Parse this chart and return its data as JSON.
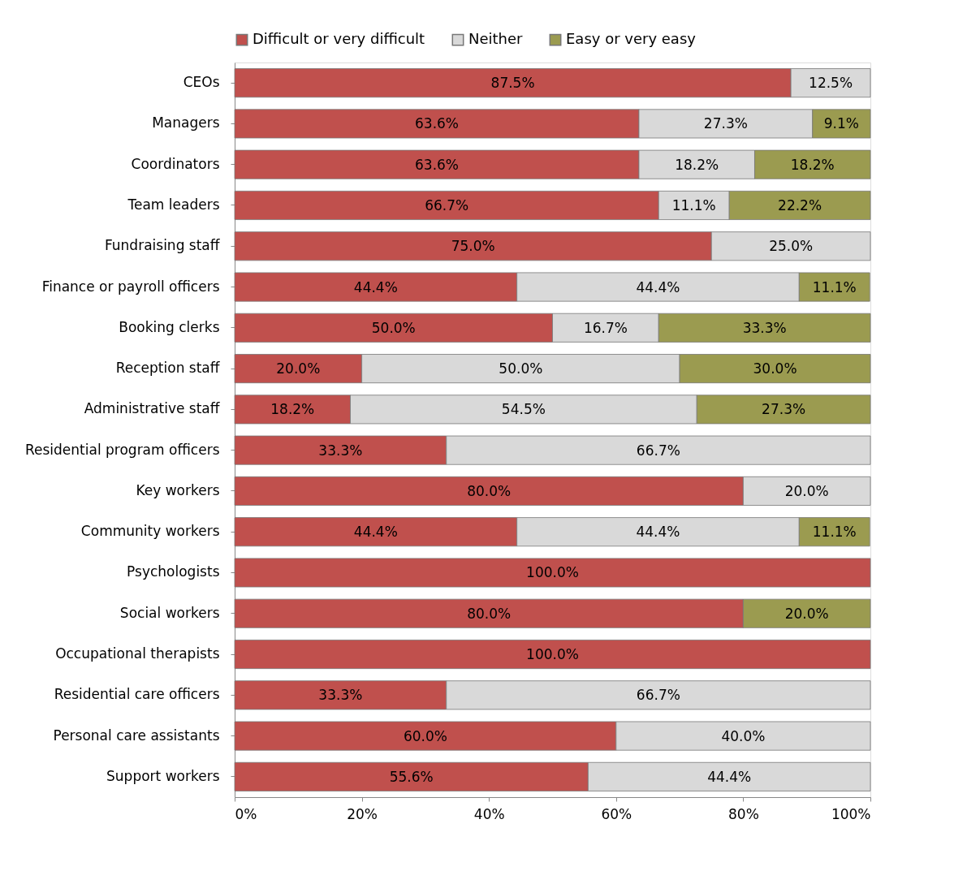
{
  "chart_data": {
    "type": "bar",
    "orientation": "horizontal",
    "stacked": true,
    "legend": "top",
    "categories": [
      "CEOs",
      "Managers",
      "Coordinators",
      "Team leaders",
      "Fundraising staff",
      "Finance or payroll officers",
      "Booking clerks",
      "Reception staff",
      "Administrative staff",
      "Residential program officers",
      "Key workers",
      "Community workers",
      "Psychologists",
      "Social workers",
      "Occupational therapists",
      "Residential care officers",
      "Personal care assistants",
      "Support workers"
    ],
    "series": [
      {
        "name": "Difficult or very difficult",
        "color": "#c0504d",
        "values": [
          87.5,
          63.6,
          63.6,
          66.7,
          75.0,
          44.4,
          50.0,
          20.0,
          18.2,
          33.3,
          80.0,
          44.4,
          100.0,
          80.0,
          100.0,
          33.3,
          60.0,
          55.6
        ],
        "value_labels": [
          "87.5%",
          "63.6%",
          "63.6%",
          "66.7%",
          "75.0%",
          "44.4%",
          "50.0%",
          "20.0%",
          "18.2%",
          "33.3%",
          "80.0%",
          "44.4%",
          "100.0%",
          "80.0%",
          "100.0%",
          "33.3%",
          "60.0%",
          "55.6%"
        ]
      },
      {
        "name": "Neither",
        "color": "#d9d9d9",
        "values": [
          12.5,
          27.3,
          18.2,
          11.1,
          25.0,
          44.4,
          16.7,
          50.0,
          54.5,
          66.7,
          20.0,
          44.4,
          null,
          null,
          null,
          66.7,
          40.0,
          44.4
        ],
        "value_labels": [
          "12.5%",
          "27.3%",
          "18.2%",
          "11.1%",
          "25.0%",
          "44.4%",
          "16.7%",
          "50.0%",
          "54.5%",
          "66.7%",
          "20.0%",
          "44.4%",
          null,
          null,
          null,
          "66.7%",
          "40.0%",
          "44.4%"
        ]
      },
      {
        "name": "Easy or very easy",
        "color": "#9b9b50",
        "values": [
          null,
          9.1,
          18.2,
          22.2,
          null,
          11.1,
          33.3,
          30.0,
          27.3,
          null,
          null,
          11.1,
          null,
          20.0,
          null,
          null,
          null,
          null
        ],
        "value_labels": [
          null,
          "9.1%",
          "18.2%",
          "22.2%",
          null,
          "11.1%",
          "33.3%",
          "30.0%",
          "27.3%",
          null,
          null,
          "11.1%",
          null,
          "20.0%",
          null,
          null,
          null,
          null
        ]
      }
    ],
    "xlim": [
      0,
      100
    ],
    "xticks": [
      {
        "value": 0,
        "label": "0%"
      },
      {
        "value": 20,
        "label": "20%"
      },
      {
        "value": 40,
        "label": "40%"
      },
      {
        "value": 60,
        "label": "60%"
      },
      {
        "value": 80,
        "label": "80%"
      },
      {
        "value": 100,
        "label": "100%"
      }
    ]
  }
}
